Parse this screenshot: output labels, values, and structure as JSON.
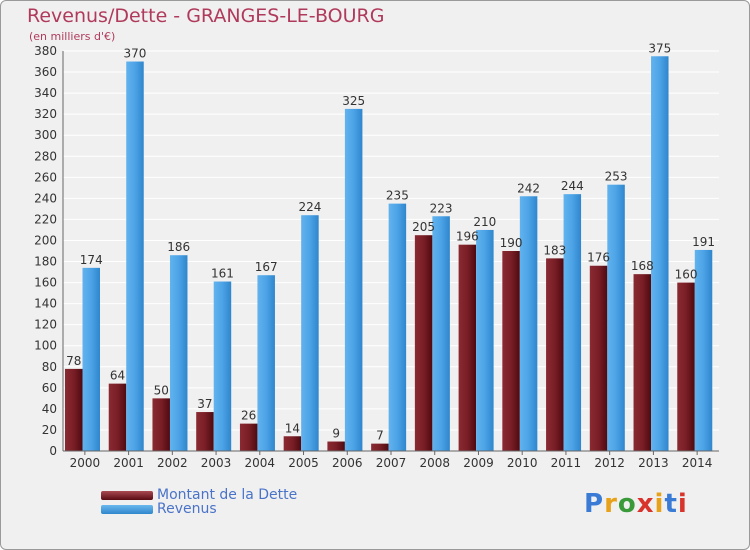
{
  "header": {
    "title": "Revenus/Dette - GRANGES-LE-BOURG",
    "subtitle": "(en milliers d'€)"
  },
  "legend": {
    "debt_label": "Montant de la Dette",
    "revenue_label": "Revenus"
  },
  "logo": {
    "text": "Proxiti"
  },
  "colors": {
    "debt": "#6e1a22",
    "revenue": "#4ca3e6",
    "title": "#b03a5b",
    "legend_text": "#4a73c8"
  },
  "chart_data": {
    "type": "bar",
    "categories": [
      "2000",
      "2001",
      "2002",
      "2003",
      "2004",
      "2005",
      "2006",
      "2007",
      "2008",
      "2009",
      "2010",
      "2011",
      "2012",
      "2013",
      "2014"
    ],
    "series": [
      {
        "name": "Montant de la Dette",
        "values": [
          78,
          64,
          50,
          37,
          26,
          14,
          9,
          7,
          205,
          196,
          190,
          183,
          176,
          168,
          160
        ]
      },
      {
        "name": "Revenus",
        "values": [
          174,
          370,
          186,
          161,
          167,
          224,
          325,
          235,
          223,
          210,
          242,
          244,
          253,
          375,
          191
        ]
      }
    ],
    "ylim": [
      0,
      380
    ],
    "yticks": [
      0,
      20,
      40,
      60,
      80,
      100,
      120,
      140,
      160,
      180,
      200,
      220,
      240,
      260,
      280,
      300,
      320,
      340,
      360,
      380
    ],
    "grid": true
  }
}
